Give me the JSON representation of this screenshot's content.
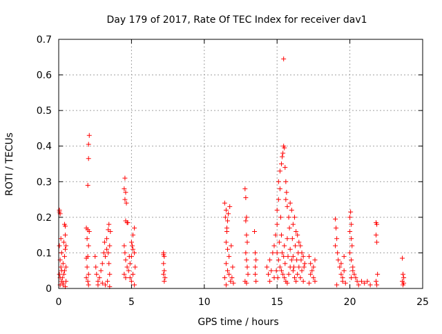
{
  "chart_data": {
    "type": "scatter",
    "title": "Day 179 of 2017, Rate Of TEC Index for receiver dav1",
    "xlabel": "GPS time / hours",
    "ylabel": "ROTI / TECUs",
    "xlim": [
      0,
      25
    ],
    "ylim": [
      0,
      0.7
    ],
    "grid": true,
    "marker": "+",
    "marker_color": "#ff0000",
    "x_ticks": [
      0,
      5,
      10,
      15,
      20,
      25
    ],
    "y_ticks": [
      0,
      0.1,
      0.2,
      0.3,
      0.4,
      0.5,
      0.6,
      0.7
    ],
    "x_tick_labels": [
      "0",
      "5",
      "10",
      "15",
      "20",
      "25"
    ],
    "y_tick_labels": [
      "0",
      "0.1",
      "0.2",
      "0.3",
      "0.4",
      "0.5",
      "0.6",
      "0.7"
    ],
    "series": [
      {
        "name": "ROTI",
        "points": [
          [
            0.05,
            0.22
          ],
          [
            0.05,
            0.215
          ],
          [
            0.1,
            0.21
          ],
          [
            0.05,
            0.12
          ],
          [
            0.1,
            0.08
          ],
          [
            0.15,
            0.06
          ],
          [
            0.2,
            0.05
          ],
          [
            0.05,
            0.04
          ],
          [
            0.1,
            0.03
          ],
          [
            0.2,
            0.02
          ],
          [
            0.1,
            0.01
          ],
          [
            0.3,
            0.015
          ],
          [
            0.25,
            0.03
          ],
          [
            0.35,
            0.04
          ],
          [
            0.4,
            0.05
          ],
          [
            0.3,
            0.07
          ],
          [
            0.4,
            0.09
          ],
          [
            0.45,
            0.11
          ],
          [
            0.35,
            0.13
          ],
          [
            0.45,
            0.15
          ],
          [
            0.4,
            0.18
          ],
          [
            0.45,
            0.175
          ],
          [
            0.5,
            0.12
          ],
          [
            0.5,
            0.06
          ],
          [
            0.5,
            0.02
          ],
          [
            0.2,
            0.1
          ],
          [
            0.15,
            0.14
          ],
          [
            0.3,
            0.01
          ],
          [
            0.45,
            0.005
          ],
          [
            1.9,
            0.17
          ],
          [
            2.0,
            0.165
          ],
          [
            1.95,
            0.14
          ],
          [
            2.05,
            0.12
          ],
          [
            1.9,
            0.085
          ],
          [
            2.0,
            0.09
          ],
          [
            1.95,
            0.06
          ],
          [
            2.05,
            0.04
          ],
          [
            1.9,
            0.03
          ],
          [
            2.0,
            0.02
          ],
          [
            2.05,
            0.01
          ],
          [
            2.0,
            0.29
          ],
          [
            2.05,
            0.365
          ],
          [
            2.05,
            0.405
          ],
          [
            2.1,
            0.43
          ],
          [
            2.1,
            0.16
          ],
          [
            2.5,
            0.09
          ],
          [
            2.55,
            0.06
          ],
          [
            2.6,
            0.04
          ],
          [
            2.7,
            0.02
          ],
          [
            2.8,
            0.03
          ],
          [
            2.9,
            0.05
          ],
          [
            3.0,
            0.07
          ],
          [
            3.1,
            0.1
          ],
          [
            3.15,
            0.13
          ],
          [
            3.2,
            0.09
          ],
          [
            3.3,
            0.11
          ],
          [
            3.3,
            0.14
          ],
          [
            3.4,
            0.165
          ],
          [
            3.45,
            0.18
          ],
          [
            3.5,
            0.12
          ],
          [
            3.45,
            0.07
          ],
          [
            3.5,
            0.04
          ],
          [
            3.35,
            0.02
          ],
          [
            3.2,
            0.01
          ],
          [
            3.0,
            0.015
          ],
          [
            2.7,
            0.01
          ],
          [
            3.5,
            0.005
          ],
          [
            3.55,
            0.16
          ],
          [
            3.4,
            0.1
          ],
          [
            4.5,
            0.28
          ],
          [
            4.55,
            0.31
          ],
          [
            4.6,
            0.27
          ],
          [
            4.65,
            0.24
          ],
          [
            4.55,
            0.25
          ],
          [
            4.6,
            0.19
          ],
          [
            4.7,
            0.185
          ],
          [
            4.5,
            0.12
          ],
          [
            4.55,
            0.1
          ],
          [
            4.6,
            0.08
          ],
          [
            4.7,
            0.06
          ],
          [
            4.5,
            0.04
          ],
          [
            4.6,
            0.03
          ],
          [
            4.8,
            0.05
          ],
          [
            4.9,
            0.07
          ],
          [
            5.0,
            0.09
          ],
          [
            5.1,
            0.11
          ],
          [
            5.0,
            0.13
          ],
          [
            5.1,
            0.15
          ],
          [
            5.2,
            0.17
          ],
          [
            5.2,
            0.1
          ],
          [
            5.25,
            0.06
          ],
          [
            5.1,
            0.04
          ],
          [
            5.0,
            0.02
          ],
          [
            4.9,
            0.03
          ],
          [
            5.2,
            0.01
          ],
          [
            4.75,
            0.185
          ],
          [
            5.05,
            0.12
          ],
          [
            4.85,
            0.09
          ],
          [
            7.2,
            0.1
          ],
          [
            7.25,
            0.09
          ],
          [
            7.2,
            0.07
          ],
          [
            7.25,
            0.05
          ],
          [
            7.2,
            0.04
          ],
          [
            7.3,
            0.03
          ],
          [
            7.25,
            0.02
          ],
          [
            7.2,
            0.095
          ],
          [
            11.4,
            0.24
          ],
          [
            11.5,
            0.22
          ],
          [
            11.45,
            0.2
          ],
          [
            11.6,
            0.19
          ],
          [
            11.55,
            0.16
          ],
          [
            11.5,
            0.13
          ],
          [
            11.6,
            0.11
          ],
          [
            11.7,
            0.09
          ],
          [
            11.5,
            0.07
          ],
          [
            11.6,
            0.05
          ],
          [
            11.7,
            0.04
          ],
          [
            11.4,
            0.03
          ],
          [
            11.8,
            0.02
          ],
          [
            11.9,
            0.03
          ],
          [
            12.0,
            0.015
          ],
          [
            11.75,
            0.23
          ],
          [
            11.85,
            0.12
          ],
          [
            11.95,
            0.06
          ],
          [
            11.5,
            0.01
          ],
          [
            11.65,
            0.21
          ],
          [
            11.55,
            0.17
          ],
          [
            12.8,
            0.28
          ],
          [
            12.85,
            0.255
          ],
          [
            12.9,
            0.2
          ],
          [
            12.85,
            0.19
          ],
          [
            12.9,
            0.15
          ],
          [
            12.95,
            0.13
          ],
          [
            12.85,
            0.1
          ],
          [
            12.9,
            0.08
          ],
          [
            12.95,
            0.06
          ],
          [
            12.8,
            0.02
          ],
          [
            12.9,
            0.015
          ],
          [
            13.0,
            0.04
          ],
          [
            13.5,
            0.1
          ],
          [
            13.55,
            0.08
          ],
          [
            13.5,
            0.06
          ],
          [
            13.45,
            0.16
          ],
          [
            13.55,
            0.02
          ],
          [
            13.5,
            0.04
          ],
          [
            14.3,
            0.06
          ],
          [
            14.4,
            0.04
          ],
          [
            14.5,
            0.08
          ],
          [
            14.6,
            0.05
          ],
          [
            14.7,
            0.1
          ],
          [
            14.8,
            0.12
          ],
          [
            14.9,
            0.15
          ],
          [
            15.0,
            0.18
          ],
          [
            15.0,
            0.22
          ],
          [
            15.1,
            0.25
          ],
          [
            15.1,
            0.3
          ],
          [
            15.2,
            0.28
          ],
          [
            15.2,
            0.33
          ],
          [
            15.3,
            0.35
          ],
          [
            15.35,
            0.37
          ],
          [
            15.4,
            0.38
          ],
          [
            15.45,
            0.4
          ],
          [
            15.5,
            0.395
          ],
          [
            15.45,
            0.645
          ],
          [
            15.55,
            0.34
          ],
          [
            15.6,
            0.3
          ],
          [
            15.6,
            0.25
          ],
          [
            15.7,
            0.23
          ],
          [
            15.8,
            0.2
          ],
          [
            15.9,
            0.24
          ],
          [
            16.0,
            0.22
          ],
          [
            16.1,
            0.18
          ],
          [
            16.2,
            0.2
          ],
          [
            16.3,
            0.16
          ],
          [
            16.4,
            0.15
          ],
          [
            16.5,
            0.13
          ],
          [
            16.6,
            0.12
          ],
          [
            16.7,
            0.1
          ],
          [
            16.8,
            0.09
          ],
          [
            16.9,
            0.07
          ],
          [
            15.0,
            0.1
          ],
          [
            15.1,
            0.08
          ],
          [
            15.2,
            0.06
          ],
          [
            15.3,
            0.05
          ],
          [
            15.4,
            0.04
          ],
          [
            15.5,
            0.03
          ],
          [
            15.6,
            0.02
          ],
          [
            15.7,
            0.015
          ],
          [
            15.8,
            0.04
          ],
          [
            15.9,
            0.06
          ],
          [
            16.0,
            0.08
          ],
          [
            16.1,
            0.05
          ],
          [
            16.2,
            0.03
          ],
          [
            16.3,
            0.02
          ],
          [
            16.4,
            0.04
          ],
          [
            16.5,
            0.06
          ],
          [
            16.6,
            0.03
          ],
          [
            16.7,
            0.05
          ],
          [
            16.8,
            0.02
          ],
          [
            14.5,
            0.02
          ],
          [
            14.8,
            0.03
          ],
          [
            15.3,
            0.15
          ],
          [
            15.5,
            0.12
          ],
          [
            15.7,
            0.14
          ],
          [
            15.9,
            0.11
          ],
          [
            16.1,
            0.09
          ],
          [
            15.25,
            0.2
          ],
          [
            15.65,
            0.27
          ],
          [
            15.35,
            0.1
          ],
          [
            15.15,
            0.13
          ],
          [
            15.55,
            0.07
          ],
          [
            15.75,
            0.09
          ],
          [
            16.05,
            0.14
          ],
          [
            16.25,
            0.12
          ],
          [
            16.45,
            0.1
          ],
          [
            16.65,
            0.08
          ],
          [
            16.85,
            0.06
          ],
          [
            14.95,
            0.05
          ],
          [
            15.05,
            0.03
          ],
          [
            15.45,
            0.09
          ],
          [
            15.85,
            0.17
          ],
          [
            16.15,
            0.06
          ],
          [
            16.35,
            0.08
          ],
          [
            17.2,
            0.09
          ],
          [
            17.3,
            0.07
          ],
          [
            17.4,
            0.05
          ],
          [
            17.5,
            0.03
          ],
          [
            17.6,
            0.02
          ],
          [
            17.3,
            0.04
          ],
          [
            17.5,
            0.06
          ],
          [
            17.2,
            0.015
          ],
          [
            17.6,
            0.08
          ],
          [
            19.0,
            0.195
          ],
          [
            19.05,
            0.17
          ],
          [
            19.1,
            0.14
          ],
          [
            19.0,
            0.12
          ],
          [
            19.15,
            0.1
          ],
          [
            19.2,
            0.08
          ],
          [
            19.3,
            0.06
          ],
          [
            19.4,
            0.04
          ],
          [
            19.5,
            0.03
          ],
          [
            19.6,
            0.05
          ],
          [
            19.6,
            0.09
          ],
          [
            19.5,
            0.02
          ],
          [
            19.1,
            0.01
          ],
          [
            19.7,
            0.015
          ],
          [
            19.4,
            0.07
          ],
          [
            20.0,
            0.2
          ],
          [
            20.05,
            0.215
          ],
          [
            20.1,
            0.18
          ],
          [
            20.0,
            0.16
          ],
          [
            20.1,
            0.14
          ],
          [
            20.15,
            0.12
          ],
          [
            20.0,
            0.1
          ],
          [
            20.1,
            0.08
          ],
          [
            20.2,
            0.06
          ],
          [
            20.3,
            0.04
          ],
          [
            20.4,
            0.03
          ],
          [
            20.5,
            0.02
          ],
          [
            20.6,
            0.01
          ],
          [
            20.8,
            0.02
          ],
          [
            21.0,
            0.015
          ],
          [
            21.2,
            0.02
          ],
          [
            21.4,
            0.01
          ],
          [
            20.2,
            0.05
          ],
          [
            20.1,
            0.03
          ],
          [
            21.8,
            0.185
          ],
          [
            21.85,
            0.18
          ],
          [
            21.8,
            0.15
          ],
          [
            21.85,
            0.13
          ],
          [
            21.9,
            0.04
          ],
          [
            21.8,
            0.02
          ],
          [
            21.85,
            0.01
          ],
          [
            23.6,
            0.085
          ],
          [
            23.65,
            0.04
          ],
          [
            23.7,
            0.03
          ],
          [
            23.6,
            0.02
          ],
          [
            23.65,
            0.01
          ],
          [
            23.7,
            0.015
          ]
        ]
      }
    ]
  }
}
